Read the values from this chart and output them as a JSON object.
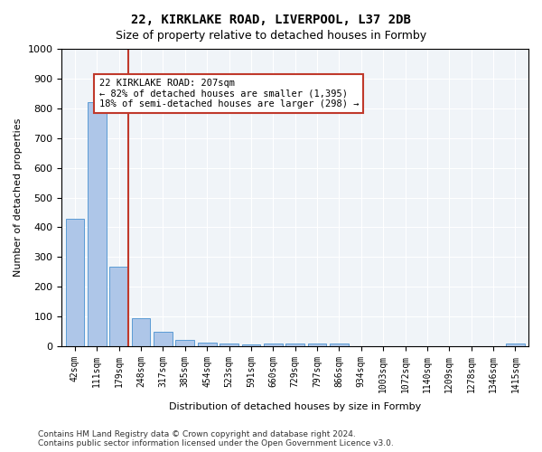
{
  "title1": "22, KIRKLAKE ROAD, LIVERPOOL, L37 2DB",
  "title2": "Size of property relative to detached houses in Formby",
  "xlabel": "Distribution of detached houses by size in Formby",
  "ylabel": "Number of detached properties",
  "categories": [
    "42sqm",
    "111sqm",
    "179sqm",
    "248sqm",
    "317sqm",
    "385sqm",
    "454sqm",
    "523sqm",
    "591sqm",
    "660sqm",
    "729sqm",
    "797sqm",
    "866sqm",
    "934sqm",
    "1003sqm",
    "1072sqm",
    "1140sqm",
    "1209sqm",
    "1278sqm",
    "1346sqm",
    "1415sqm"
  ],
  "values": [
    430,
    820,
    268,
    93,
    48,
    20,
    13,
    8,
    5,
    10,
    10,
    10,
    10,
    0,
    0,
    0,
    0,
    0,
    0,
    0,
    10
  ],
  "bar_color": "#aec6e8",
  "bar_edge_color": "#5b9bd5",
  "vline_x": 2,
  "vline_color": "#c0392b",
  "annotation_text": "22 KIRKLAKE ROAD: 207sqm\n← 82% of detached houses are smaller (1,395)\n18% of semi-detached houses are larger (298) →",
  "annotation_box_color": "white",
  "annotation_box_edge": "#c0392b",
  "ylim": [
    0,
    1000
  ],
  "yticks": [
    0,
    100,
    200,
    300,
    400,
    500,
    600,
    700,
    800,
    900,
    1000
  ],
  "footer": "Contains HM Land Registry data © Crown copyright and database right 2024.\nContains public sector information licensed under the Open Government Licence v3.0.",
  "bg_color": "#f0f4f8"
}
